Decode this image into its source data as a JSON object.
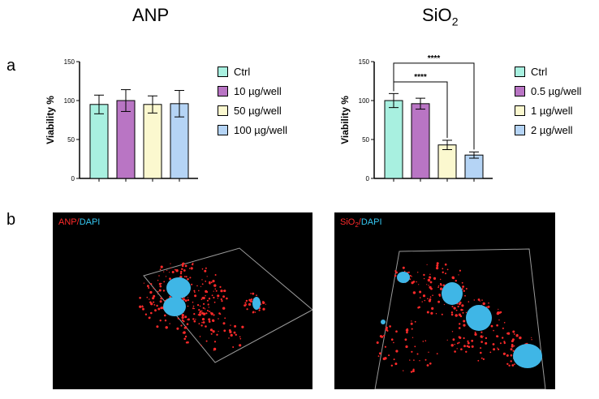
{
  "titles": {
    "left": "ANP",
    "right_base": "SiO",
    "right_sub": "2"
  },
  "panels": {
    "a": "a",
    "b": "b"
  },
  "colors": {
    "ctrl": "#a8f0e0",
    "c1": "#b975c4",
    "c2": "#fbf8cf",
    "c3": "#b5d4f5",
    "marker_red": "#ff2a2a",
    "marker_blue": "#35c6f0"
  },
  "chart_data": [
    {
      "type": "bar",
      "title": "",
      "ylabel": "Viability %",
      "ylim": [
        0,
        150
      ],
      "yticks": [
        "0",
        "50",
        "100",
        "150"
      ],
      "categories": [
        "Ctrl",
        "10 µg/well",
        "50 µg/well",
        "100 µg/well"
      ],
      "values": [
        95,
        100,
        95,
        96
      ],
      "errors": [
        12,
        14,
        11,
        17
      ],
      "legend": [
        "Ctrl",
        "10 µg/well",
        "50 µg/well",
        "100 µg/well"
      ],
      "significance": []
    },
    {
      "type": "bar",
      "title": "",
      "ylabel": "Viability %",
      "ylim": [
        0,
        150
      ],
      "yticks": [
        "0",
        "50",
        "100",
        "150"
      ],
      "categories": [
        "Ctrl",
        "0.5 µg/well",
        "1 µg/well",
        "2 µg/well"
      ],
      "values": [
        100,
        96,
        43,
        30
      ],
      "errors": [
        9,
        7,
        6,
        4
      ],
      "legend": [
        "Ctrl",
        "0.5 µg/well",
        "1 µg/well",
        "2 µg/well"
      ],
      "significance": [
        {
          "from": 0,
          "to": 3,
          "label": "****",
          "y": 148
        },
        {
          "from": 0,
          "to": 2,
          "label": "****",
          "y": 124
        }
      ]
    }
  ],
  "micrographs": [
    {
      "marker": "ANP",
      "slash": "/",
      "stain": "DAPI"
    },
    {
      "marker_base": "SiO",
      "marker_sub": "2",
      "slash": "/",
      "stain": "DAPI"
    }
  ]
}
